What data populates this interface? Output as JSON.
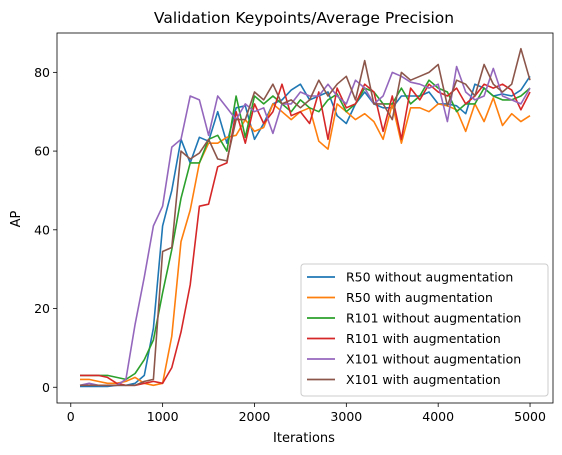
{
  "chart_data": {
    "type": "line",
    "title": "Validation Keypoints/Average Precision",
    "xlabel": "Iterations",
    "ylabel": "AP",
    "xlim": [
      -150,
      5250
    ],
    "ylim": [
      -4,
      90
    ],
    "xticks": [
      0,
      1000,
      2000,
      3000,
      4000,
      5000
    ],
    "yticks": [
      0,
      20,
      40,
      60,
      80
    ],
    "legend_position": "lower-right",
    "grid": false,
    "x": [
      100,
      200,
      300,
      400,
      500,
      600,
      700,
      800,
      900,
      1000,
      1100,
      1200,
      1300,
      1400,
      1500,
      1600,
      1700,
      1800,
      1900,
      2000,
      2100,
      2200,
      2300,
      2400,
      2500,
      2600,
      2700,
      2800,
      2900,
      3000,
      3100,
      3200,
      3300,
      3400,
      3500,
      3600,
      3700,
      3800,
      3900,
      4000,
      4100,
      4200,
      4300,
      4400,
      4500,
      4600,
      4700,
      4800,
      4900,
      5000
    ],
    "series": [
      {
        "name": "R50 without augmentation",
        "color": "#1f77b4",
        "values": [
          0.2,
          0.2,
          0.2,
          0.2,
          0.5,
          0.5,
          1.0,
          3.0,
          15.0,
          41.0,
          50.0,
          63.0,
          57.0,
          63.5,
          62.5,
          70.0,
          62.0,
          71.0,
          71.5,
          63.0,
          67.0,
          72.0,
          73.0,
          75.5,
          77.0,
          73.0,
          74.0,
          75.0,
          69.0,
          67.0,
          72.0,
          75.0,
          72.0,
          71.0,
          71.0,
          74.0,
          74.0,
          74.0,
          75.0,
          72.0,
          72.0,
          71.5,
          69.5,
          77.0,
          76.0,
          74.0,
          74.5,
          74.0,
          75.5,
          79.0
        ]
      },
      {
        "name": "R50 with augmentation",
        "color": "#ff7f0e",
        "values": [
          2.0,
          2.0,
          1.5,
          1.0,
          1.0,
          1.5,
          2.5,
          1.0,
          0.5,
          1.0,
          13.0,
          37.0,
          45.0,
          57.0,
          62.0,
          62.0,
          63.5,
          64.0,
          68.0,
          65.0,
          66.0,
          72.0,
          70.0,
          68.0,
          70.0,
          71.0,
          62.5,
          60.5,
          72.0,
          70.0,
          68.0,
          69.5,
          67.5,
          63.0,
          72.0,
          62.0,
          71.0,
          71.0,
          70.0,
          72.0,
          71.5,
          70.5,
          65.0,
          72.0,
          67.5,
          73.5,
          66.5,
          69.5,
          67.5,
          69.0
        ]
      },
      {
        "name": "R101 without augmentation",
        "color": "#2ca02c",
        "values": [
          3.0,
          3.0,
          3.0,
          3.0,
          2.5,
          2.0,
          3.5,
          7.0,
          12.0,
          24.0,
          35.0,
          48.0,
          57.0,
          57.0,
          63.0,
          64.0,
          60.0,
          74.0,
          63.5,
          74.0,
          72.0,
          74.0,
          72.0,
          70.0,
          73.0,
          71.0,
          70.0,
          73.0,
          74.5,
          70.0,
          72.0,
          76.0,
          75.0,
          72.0,
          72.0,
          76.0,
          72.0,
          74.0,
          78.0,
          76.0,
          75.0,
          70.0,
          72.0,
          72.0,
          76.0,
          74.0,
          73.0,
          73.0,
          74.0,
          76.0
        ]
      },
      {
        "name": "R101 with augmentation",
        "color": "#d62728",
        "values": [
          3.0,
          3.0,
          3.0,
          2.5,
          1.0,
          0.5,
          0.5,
          1.0,
          1.5,
          1.0,
          5.0,
          14.0,
          26.0,
          46.0,
          46.5,
          56.0,
          57.0,
          70.0,
          62.0,
          72.0,
          67.0,
          70.0,
          77.0,
          69.0,
          70.0,
          67.0,
          75.0,
          63.0,
          76.0,
          71.0,
          72.0,
          77.0,
          75.0,
          65.0,
          74.0,
          63.0,
          76.0,
          73.0,
          77.0,
          75.0,
          74.0,
          76.0,
          72.0,
          74.0,
          77.0,
          76.0,
          77.0,
          75.5,
          70.5,
          75.0
        ]
      },
      {
        "name": "X101 without augmentation",
        "color": "#9467bd",
        "values": [
          0.5,
          1.0,
          0.5,
          0.5,
          0.5,
          2.0,
          16.0,
          28.0,
          41.0,
          46.0,
          61.0,
          63.0,
          74.0,
          73.0,
          64.0,
          74.0,
          71.0,
          68.0,
          72.0,
          70.0,
          71.0,
          64.5,
          72.0,
          72.0,
          75.0,
          74.0,
          74.0,
          77.0,
          74.0,
          72.0,
          78.0,
          76.0,
          72.0,
          74.0,
          80.0,
          79.0,
          77.5,
          77.0,
          76.0,
          77.0,
          67.5,
          81.5,
          75.0,
          73.0,
          74.0,
          81.0,
          74.0,
          73.0,
          72.0,
          76.0
        ]
      },
      {
        "name": "X101 with augmentation",
        "color": "#8c564b",
        "values": [
          0.5,
          0.5,
          0.5,
          0.5,
          0.5,
          0.5,
          0.5,
          1.5,
          2.0,
          34.5,
          35.5,
          60.0,
          58.0,
          59.5,
          63.0,
          58.0,
          57.5,
          68.0,
          68.0,
          75.0,
          73.0,
          77.0,
          72.0,
          73.0,
          71.0,
          73.0,
          78.0,
          74.0,
          77.0,
          79.0,
          73.0,
          83.0,
          72.0,
          72.0,
          68.0,
          80.0,
          78.0,
          79.0,
          80.0,
          82.0,
          71.5,
          78.0,
          77.0,
          74.0,
          82.0,
          77.0,
          75.0,
          77.0,
          86.0,
          78.0
        ]
      }
    ]
  }
}
